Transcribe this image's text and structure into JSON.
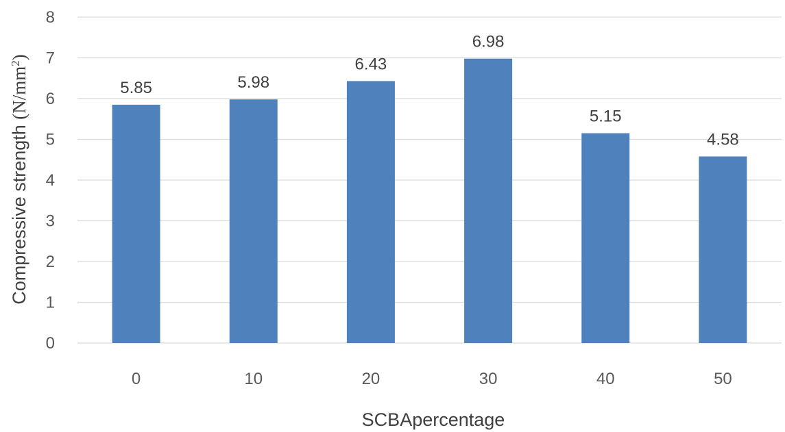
{
  "chart_data": {
    "type": "bar",
    "categories": [
      "0",
      "10",
      "20",
      "30",
      "40",
      "50"
    ],
    "values": [
      5.85,
      5.98,
      6.43,
      6.98,
      5.15,
      4.58
    ],
    "data_labels": [
      "5.85",
      "5.98",
      "6.43",
      "6.98",
      "5.15",
      "4.58"
    ],
    "title": "",
    "xlabel": "SCBApercentage",
    "ylabel": {
      "text": "Compressive strength ",
      "unit_base": "(N/mm",
      "unit_sup": "2",
      "unit_close": ")"
    },
    "ylim": [
      0,
      8
    ],
    "yticks": [
      "0",
      "1",
      "2",
      "3",
      "4",
      "5",
      "6",
      "7",
      "8"
    ],
    "grid": true,
    "legend": "none",
    "colors": {
      "bar": "#4F81BD",
      "grid": "#D9D9D9",
      "text": "#595959"
    }
  }
}
